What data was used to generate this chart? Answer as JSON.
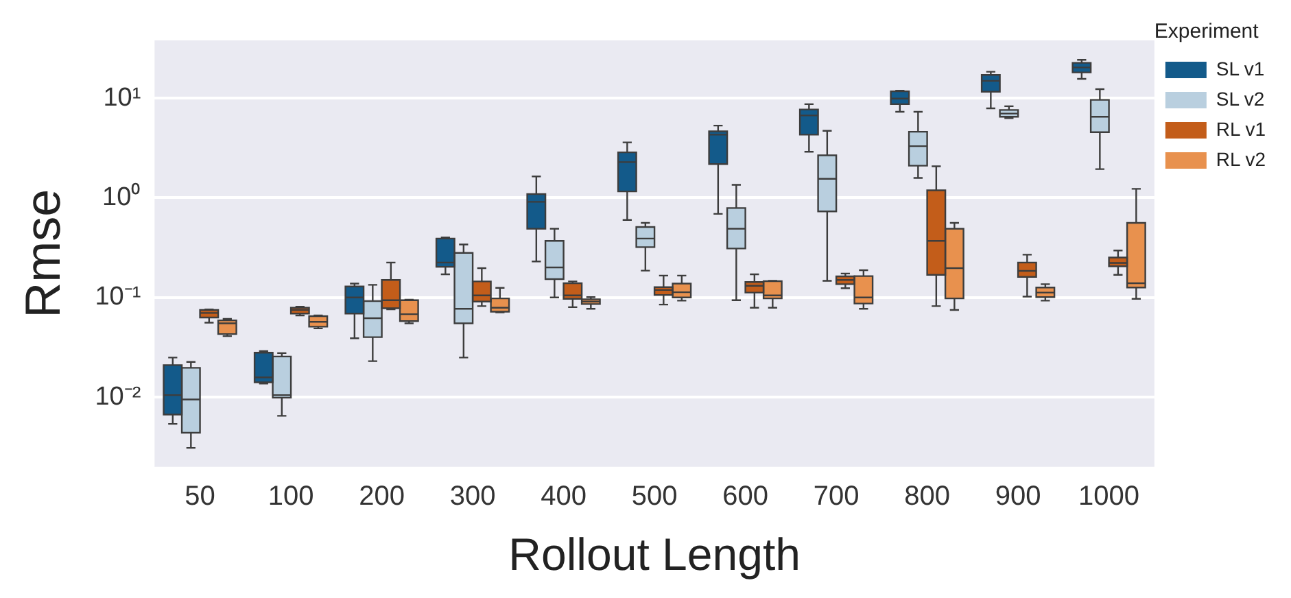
{
  "chart_data": {
    "type": "box",
    "xlabel": "Rollout Length",
    "ylabel": "Rmse",
    "legend_title": "Experiment",
    "legend": "right",
    "log": true,
    "grid": "y",
    "ylim": [
      0.002,
      38
    ],
    "yticks": [
      {
        "value": 0.01,
        "label": "10⁻²"
      },
      {
        "value": 0.1,
        "label": "10⁻¹"
      },
      {
        "value": 1,
        "label": "10⁰"
      },
      {
        "value": 10,
        "label": "10¹"
      }
    ],
    "categories": [
      "50",
      "100",
      "200",
      "300",
      "400",
      "500",
      "600",
      "700",
      "800",
      "900",
      "1000"
    ],
    "series": [
      {
        "name": "SL v1",
        "color": "#135a8a",
        "boxes": [
          {
            "low": 0.0054,
            "q1": 0.0067,
            "median": 0.0105,
            "q3": 0.021,
            "high": 0.025
          },
          {
            "low": 0.0137,
            "q1": 0.0141,
            "median": 0.0158,
            "q3": 0.028,
            "high": 0.029
          },
          {
            "low": 0.039,
            "q1": 0.069,
            "median": 0.1,
            "q3": 0.129,
            "high": 0.138
          },
          {
            "low": 0.171,
            "q1": 0.203,
            "median": 0.224,
            "q3": 0.39,
            "high": 0.4
          },
          {
            "low": 0.23,
            "q1": 0.49,
            "median": 0.91,
            "q3": 1.09,
            "high": 1.64
          },
          {
            "low": 0.6,
            "q1": 1.16,
            "median": 2.28,
            "q3": 2.86,
            "high": 3.6
          },
          {
            "low": 0.69,
            "q1": 2.18,
            "median": 4.3,
            "q3": 4.65,
            "high": 5.3
          },
          {
            "low": 2.9,
            "q1": 4.3,
            "median": 6.7,
            "q3": 7.7,
            "high": 8.7
          },
          {
            "low": 7.3,
            "q1": 8.7,
            "median": 9.9,
            "q3": 11.7,
            "high": 11.9
          },
          {
            "low": 7.9,
            "q1": 11.6,
            "median": 14.9,
            "q3": 17.1,
            "high": 18.4
          },
          {
            "low": 15.6,
            "q1": 18.1,
            "median": 20.3,
            "q3": 22.6,
            "high": 24.2
          }
        ]
      },
      {
        "name": "SL v2",
        "color": "#b9cfdf",
        "boxes": [
          {
            "low": 0.0031,
            "q1": 0.0044,
            "median": 0.0095,
            "q3": 0.0197,
            "high": 0.0226
          },
          {
            "low": 0.0065,
            "q1": 0.0099,
            "median": 0.0105,
            "q3": 0.0256,
            "high": 0.0277
          },
          {
            "low": 0.023,
            "q1": 0.04,
            "median": 0.062,
            "q3": 0.092,
            "high": 0.134
          },
          {
            "low": 0.025,
            "q1": 0.055,
            "median": 0.077,
            "q3": 0.28,
            "high": 0.34
          },
          {
            "low": 0.1,
            "q1": 0.153,
            "median": 0.2,
            "q3": 0.37,
            "high": 0.49
          },
          {
            "low": 0.186,
            "q1": 0.32,
            "median": 0.39,
            "q3": 0.51,
            "high": 0.56
          },
          {
            "low": 0.094,
            "q1": 0.31,
            "median": 0.49,
            "q3": 0.79,
            "high": 1.35
          },
          {
            "low": 0.147,
            "q1": 0.73,
            "median": 1.55,
            "q3": 2.67,
            "high": 4.7
          },
          {
            "low": 1.58,
            "q1": 2.1,
            "median": 3.3,
            "q3": 4.6,
            "high": 7.3
          },
          {
            "low": 6.3,
            "q1": 6.5,
            "median": 7.0,
            "q3": 7.6,
            "high": 8.3
          },
          {
            "low": 1.94,
            "q1": 4.55,
            "median": 6.5,
            "q3": 9.6,
            "high": 12.3
          }
        ]
      },
      {
        "name": "RL v1",
        "color": "#c35d1a",
        "boxes": [
          {
            "low": 0.056,
            "q1": 0.063,
            "median": 0.07,
            "q3": 0.075,
            "high": 0.076
          },
          {
            "low": 0.066,
            "q1": 0.069,
            "median": 0.075,
            "q3": 0.079,
            "high": 0.081
          },
          {
            "low": 0.076,
            "q1": 0.078,
            "median": 0.094,
            "q3": 0.15,
            "high": 0.224
          },
          {
            "low": 0.082,
            "q1": 0.091,
            "median": 0.105,
            "q3": 0.145,
            "high": 0.197
          },
          {
            "low": 0.08,
            "q1": 0.097,
            "median": 0.105,
            "q3": 0.139,
            "high": 0.145
          },
          {
            "low": 0.085,
            "q1": 0.106,
            "median": 0.119,
            "q3": 0.127,
            "high": 0.166
          },
          {
            "low": 0.079,
            "q1": 0.112,
            "median": 0.131,
            "q3": 0.143,
            "high": 0.171
          },
          {
            "low": 0.124,
            "q1": 0.136,
            "median": 0.15,
            "q3": 0.163,
            "high": 0.174
          },
          {
            "low": 0.082,
            "q1": 0.169,
            "median": 0.37,
            "q3": 1.19,
            "high": 2.07
          },
          {
            "low": 0.102,
            "q1": 0.161,
            "median": 0.185,
            "q3": 0.224,
            "high": 0.269
          },
          {
            "low": 0.169,
            "q1": 0.206,
            "median": 0.222,
            "q3": 0.252,
            "high": 0.296
          }
        ]
      },
      {
        "name": "RL v2",
        "color": "#e8914e",
        "boxes": [
          {
            "low": 0.041,
            "q1": 0.043,
            "median": 0.055,
            "q3": 0.059,
            "high": 0.061
          },
          {
            "low": 0.049,
            "q1": 0.051,
            "median": 0.057,
            "q3": 0.065,
            "high": 0.066
          },
          {
            "low": 0.055,
            "q1": 0.058,
            "median": 0.068,
            "q3": 0.094,
            "high": 0.095
          },
          {
            "low": 0.071,
            "q1": 0.072,
            "median": 0.079,
            "q3": 0.098,
            "high": 0.125
          },
          {
            "low": 0.077,
            "q1": 0.086,
            "median": 0.091,
            "q3": 0.096,
            "high": 0.101
          },
          {
            "low": 0.093,
            "q1": 0.1,
            "median": 0.113,
            "q3": 0.138,
            "high": 0.166
          },
          {
            "low": 0.079,
            "q1": 0.098,
            "median": 0.105,
            "q3": 0.146,
            "high": 0.147
          },
          {
            "low": 0.077,
            "q1": 0.087,
            "median": 0.1,
            "q3": 0.164,
            "high": 0.188
          },
          {
            "low": 0.075,
            "q1": 0.098,
            "median": 0.197,
            "q3": 0.49,
            "high": 0.56
          },
          {
            "low": 0.093,
            "q1": 0.101,
            "median": 0.112,
            "q3": 0.126,
            "high": 0.136
          },
          {
            "low": 0.097,
            "q1": 0.126,
            "median": 0.139,
            "q3": 0.56,
            "high": 1.23
          }
        ]
      }
    ]
  }
}
